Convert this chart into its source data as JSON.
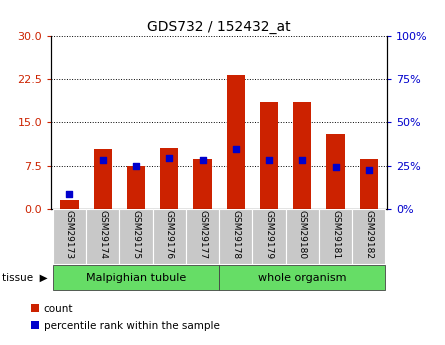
{
  "title": "GDS732 / 152432_at",
  "categories": [
    "GSM29173",
    "GSM29174",
    "GSM29175",
    "GSM29176",
    "GSM29177",
    "GSM29178",
    "GSM29179",
    "GSM29180",
    "GSM29181",
    "GSM29182"
  ],
  "counts": [
    1.5,
    10.3,
    7.5,
    10.6,
    8.7,
    23.2,
    18.5,
    18.5,
    13.0,
    8.6
  ],
  "percentiles_left_scale": [
    2.5,
    8.5,
    7.5,
    8.8,
    8.4,
    10.3,
    8.5,
    8.5,
    7.2,
    6.8
  ],
  "tissue_groups": [
    {
      "label": "Malpighian tubule",
      "start": 0,
      "end": 5
    },
    {
      "label": "whole organism",
      "start": 5,
      "end": 10
    }
  ],
  "ylim_left": [
    0,
    30
  ],
  "ylim_right": [
    0,
    100
  ],
  "yticks_left": [
    0,
    7.5,
    15,
    22.5,
    30
  ],
  "yticks_right": [
    0,
    25,
    50,
    75,
    100
  ],
  "bar_color": "#CC2200",
  "dot_color": "#0000CC",
  "bar_width": 0.55,
  "legend_count_label": "count",
  "legend_pct_label": "percentile rank within the sample",
  "background_color": "#FFFFFF",
  "plot_bg_color": "#FFFFFF",
  "grid_color": "#000000",
  "ytick_left_color": "#CC2200",
  "ytick_right_color": "#0000CC"
}
